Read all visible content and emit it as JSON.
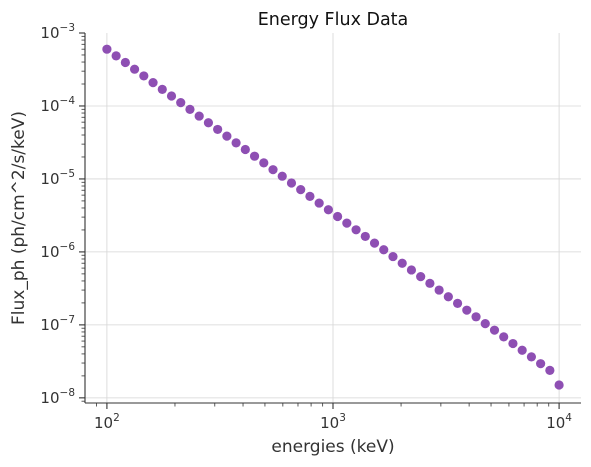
{
  "chart_data": {
    "type": "scatter",
    "title": "Energy Flux Data",
    "xlabel": "energies (keV)",
    "ylabel": "Flux_ph (ph/cm^2/s/keV)",
    "xscale": "log",
    "yscale": "log",
    "xlim": [
      80,
      12500
    ],
    "ylim": [
      8.5e-09,
      0.001
    ],
    "grid": true,
    "marker_color": "#8e4fb3",
    "x_ticks": [
      {
        "base": "10",
        "exp": "2",
        "value": 100
      },
      {
        "base": "10",
        "exp": "3",
        "value": 1000
      },
      {
        "base": "10",
        "exp": "4",
        "value": 10000
      }
    ],
    "y_ticks": [
      {
        "base": "10",
        "exp": "−3",
        "value": 0.001
      },
      {
        "base": "10",
        "exp": "−4",
        "value": 0.0001
      },
      {
        "base": "10",
        "exp": "−5",
        "value": 1e-05
      },
      {
        "base": "10",
        "exp": "−6",
        "value": 1e-06
      },
      {
        "base": "10",
        "exp": "−7",
        "value": 1e-07
      },
      {
        "base": "10",
        "exp": "−8",
        "value": 1e-08
      }
    ],
    "series": [
      {
        "x": [
          100,
          109.85,
          120.68,
          132.57,
          145.63,
          159.98,
          175.75,
          193.07,
          212.09,
          232.99,
          255.95,
          281.17,
          308.88,
          339.32,
          372.76,
          409.49,
          449.84,
          494.17,
          542.87,
          596.36,
          655.13,
          719.69,
          790.6,
          868.51,
          954.1,
          1048.11,
          1151.4,
          1264.86,
          1389.5,
          1526.42,
          1676.83,
          1842.07,
          2023.59,
          2222.99,
          2442.05,
          2682.7,
          2947.05,
          3237.46,
          3556.48,
          3906.94,
          4291.93,
          4714.87,
          5179.47,
          5689.87,
          6250.55,
          6866.49,
          7543.12,
          8286.43,
          9102.98,
          10000
        ],
        "y": [
          0.0006,
          0.000486,
          0.000394,
          0.000319,
          0.000258,
          0.000209,
          0.000169,
          0.000137,
          0.000111,
          8.98e-05,
          7.27e-05,
          5.89e-05,
          4.77e-05,
          3.86e-05,
          3.12e-05,
          2.53e-05,
          2.05e-05,
          1.66e-05,
          1.34e-05,
          1.09e-05,
          8.8e-06,
          7.13e-06,
          5.77e-06,
          4.67e-06,
          3.78e-06,
          3.06e-06,
          2.48e-06,
          2.01e-06,
          1.63e-06,
          1.32e-06,
          1.07e-06,
          8.63e-07,
          6.99e-07,
          5.66e-07,
          4.58e-07,
          3.71e-07,
          3e-07,
          2.43e-07,
          1.97e-07,
          1.59e-07,
          1.29e-07,
          1.04e-07,
          8.46e-08,
          6.85e-08,
          5.55e-08,
          4.49e-08,
          3.64e-08,
          2.94e-08,
          2.38e-08,
          1.5e-08
        ]
      }
    ]
  }
}
